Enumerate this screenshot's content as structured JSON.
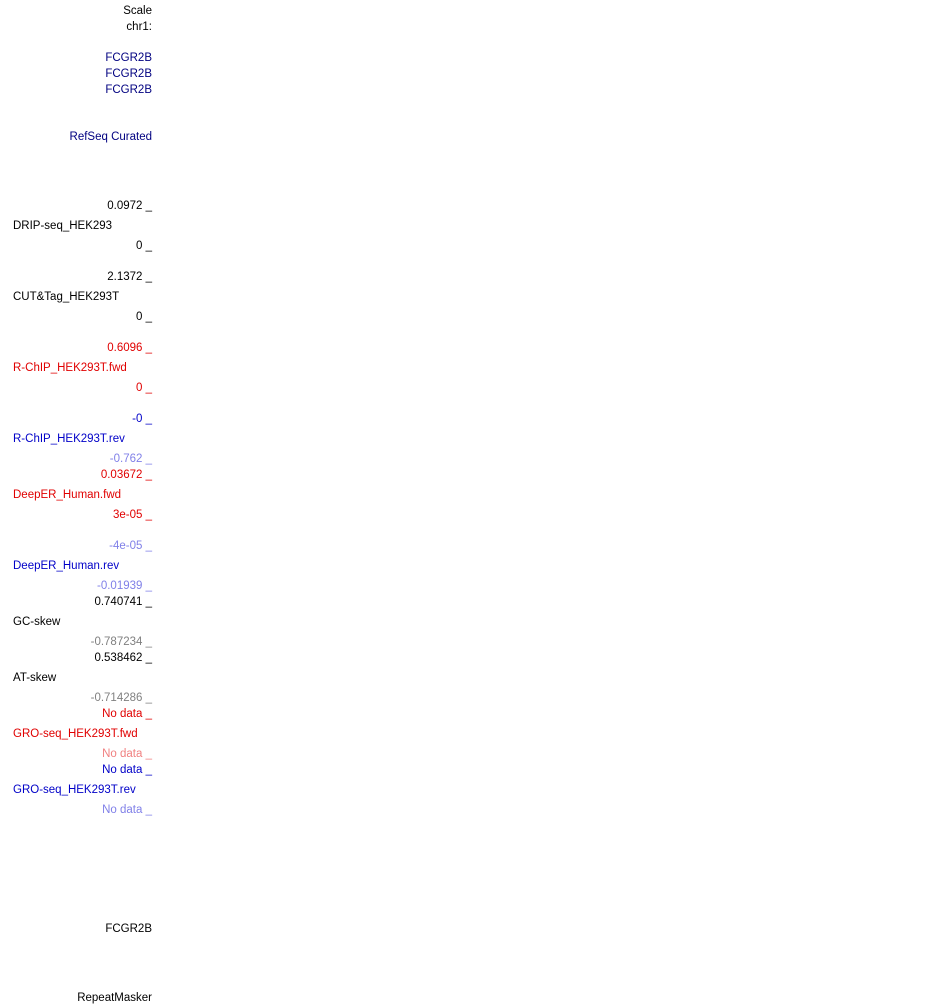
{
  "ruler": {
    "scale_label": "Scale",
    "chrom_label": "chr1:"
  },
  "genes": {
    "names": [
      "FCGR2B",
      "FCGR2B",
      "FCGR2B"
    ],
    "track_label": "RefSeq Curated",
    "name_bottom": "FCGR2B"
  },
  "tracks": [
    {
      "name": "DRIP-seq_HEK293",
      "max": "0.0972 _",
      "min": "0 _",
      "color": "#000000"
    },
    {
      "name": "CUT&Tag_HEK293T",
      "max": "2.1372 _",
      "min": "0 _",
      "color": "#000000"
    },
    {
      "name": "R-ChIP_HEK293T.fwd",
      "max": "0.6096 _",
      "min": "0 _",
      "color": "#e00000"
    },
    {
      "name": "R-ChIP_HEK293T.rev",
      "max": "-0 _",
      "min": "-0.762 _",
      "color": "#0000c8"
    },
    {
      "name": "DeepER_Human.fwd",
      "max": "0.03672 _",
      "min": "3e-05 _",
      "color": "#e00000"
    },
    {
      "name": "DeepER_Human.rev",
      "max": "-4e-05 _",
      "min": "-0.01939 _",
      "color": "#0000c8"
    },
    {
      "name": "GC-skew",
      "max": "0.740741 _",
      "min": "-0.787234 _",
      "color": "#000000"
    },
    {
      "name": "AT-skew",
      "max": "0.538462 _",
      "min": "-0.714286 _",
      "color": "#000000"
    },
    {
      "name": "GRO-seq_HEK293T.fwd",
      "max": "No data _",
      "min": "No data _",
      "color": "#e00000"
    },
    {
      "name": "GRO-seq_HEK293T.rev",
      "max": "No data _",
      "min": "No data _",
      "color": "#0000c8"
    }
  ],
  "repeats": {
    "track_label": "RepeatMasker"
  }
}
